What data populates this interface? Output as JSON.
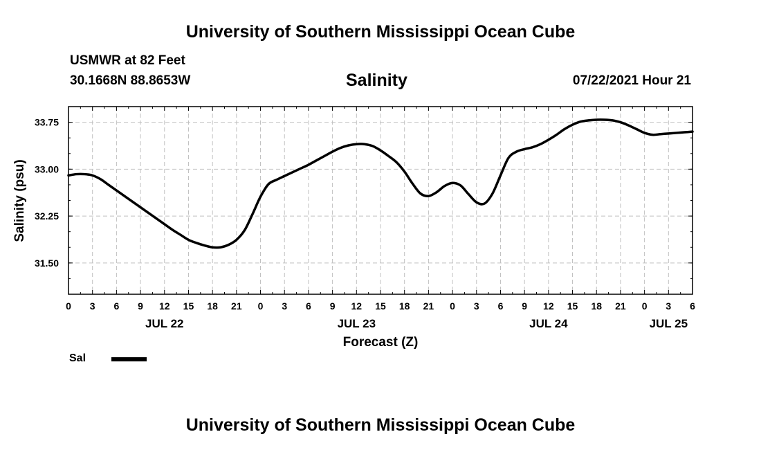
{
  "page": {
    "top_title": "University of Southern Mississippi Ocean Cube",
    "bottom_title": "University of Southern Mississippi Ocean Cube",
    "station": "USMWR at 82 Feet",
    "location": "30.1668N  88.8653W",
    "timestamp": "07/22/2021 Hour 21"
  },
  "legend": {
    "label": "Sal"
  },
  "colors": {
    "line": "#000000",
    "grid": "#c0c0c0"
  },
  "chart_data": {
    "type": "line",
    "title": "Salinity",
    "ylabel": "Salinity (psu)",
    "xlabel": "Forecast (Z)",
    "ylim": [
      31.0,
      34.0
    ],
    "yticks": [
      31.5,
      32.25,
      33.0,
      33.75
    ],
    "ytick_labels": [
      "31.50",
      "32.25",
      "33.00",
      "33.75"
    ],
    "xlim": [
      0,
      78
    ],
    "xticks": [
      0,
      3,
      6,
      9,
      12,
      15,
      18,
      21,
      24,
      27,
      30,
      33,
      36,
      39,
      42,
      45,
      48,
      51,
      54,
      57,
      60,
      63,
      66,
      69,
      72,
      75,
      78
    ],
    "xtick_labels": [
      "0",
      "3",
      "6",
      "9",
      "12",
      "15",
      "18",
      "21",
      "0",
      "3",
      "6",
      "9",
      "12",
      "15",
      "18",
      "21",
      "0",
      "3",
      "6",
      "9",
      "12",
      "15",
      "18",
      "21",
      "0",
      "3",
      "6"
    ],
    "date_labels": [
      {
        "hour": 12,
        "label": "JUL 22"
      },
      {
        "hour": 36,
        "label": "JUL 23"
      },
      {
        "hour": 60,
        "label": "JUL 24"
      },
      {
        "hour": 75,
        "label": "JUL 25"
      }
    ],
    "grid": true,
    "series": [
      {
        "name": "Sal",
        "x": [
          0,
          1,
          2,
          3,
          4,
          5,
          6,
          7,
          8,
          9,
          10,
          11,
          12,
          13,
          14,
          15,
          16,
          17,
          18,
          19,
          20,
          21,
          22,
          23,
          24,
          25,
          26,
          27,
          28,
          29,
          30,
          31,
          32,
          33,
          34,
          35,
          36,
          37,
          38,
          39,
          40,
          41,
          42,
          43,
          44,
          45,
          46,
          47,
          48,
          49,
          50,
          51,
          52,
          53,
          54,
          55,
          56,
          57,
          58,
          59,
          60,
          61,
          62,
          63,
          64,
          65,
          66,
          67,
          68,
          69,
          70,
          71,
          72,
          73,
          74,
          75,
          76,
          77,
          78
        ],
        "values": [
          32.9,
          32.92,
          32.92,
          32.9,
          32.84,
          32.75,
          32.66,
          32.57,
          32.48,
          32.39,
          32.3,
          32.21,
          32.12,
          32.03,
          31.95,
          31.87,
          31.82,
          31.78,
          31.75,
          31.75,
          31.79,
          31.87,
          32.02,
          32.28,
          32.56,
          32.76,
          32.83,
          32.89,
          32.95,
          33.01,
          33.07,
          33.14,
          33.21,
          33.28,
          33.34,
          33.38,
          33.4,
          33.4,
          33.37,
          33.3,
          33.21,
          33.11,
          32.96,
          32.77,
          32.61,
          32.57,
          32.63,
          32.73,
          32.78,
          32.74,
          32.6,
          32.47,
          32.45,
          32.61,
          32.9,
          33.18,
          33.28,
          33.32,
          33.35,
          33.4,
          33.47,
          33.55,
          33.64,
          33.71,
          33.76,
          33.78,
          33.79,
          33.79,
          33.78,
          33.75,
          33.7,
          33.64,
          33.58,
          33.55,
          33.56,
          33.57,
          33.58,
          33.59,
          33.6
        ]
      }
    ]
  }
}
